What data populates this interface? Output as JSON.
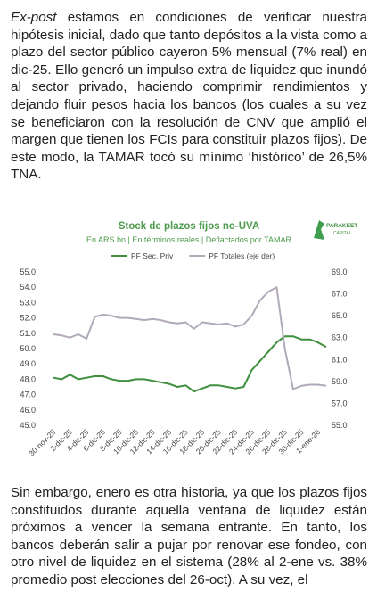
{
  "paragraphs": [
    {
      "emphasis": "Ex-post",
      "text": " estamos en condiciones de verificar nuestra hipótesis inicial, dado que tanto depósitos a la vista como a plazo del sector público cayeron 5% mensual (7% real) en dic-25. Ello generó un impulso extra de liquidez que inundó al sector privado, haciendo comprimir rendimientos y dejando fluir pesos hacia los bancos (los cuales a su vez se beneficiaron con la resolución de CNV que amplió el margen que tienen los FCIs para constituir plazos fijos). De este modo, la TAMAR tocó su mínimo ‘histórico’ de 26,5% TNA."
    },
    {
      "text": "Sin embargo, enero es otra historia, ya que los plazos fijos constituidos durante aquella ventana de liquidez están próximos a vencer la semana entrante. En tanto, los bancos deberán salir a pujar por renovar ese fondeo, con otro nivel de liquidez en el sistema (28% al 2-ene vs. 38% promedio post elecciones del 26-oct). A su vez, el"
    }
  ],
  "logo": {
    "name": "PARAKEET",
    "tagline": "CAPITAL"
  },
  "chart_data": {
    "type": "line",
    "title": "Stock de plazos fijos no-UVA",
    "subtitle": "En ARS bn | En términos reales | Deflactados por TAMAR",
    "categories": [
      "30-nov-25",
      null,
      "2-dic-25",
      null,
      "4-dic-25",
      null,
      "6-dic-25",
      null,
      "8-dic-25",
      null,
      "10-dic-25",
      null,
      "12-dic-25",
      null,
      "14-dic-25",
      null,
      "16-dic-25",
      null,
      "18-dic-25",
      null,
      "20-dic-25",
      null,
      "22-dic-25",
      null,
      "24-dic-25",
      null,
      "26-dic-25",
      null,
      "28-dic-25",
      null,
      "30-dic-25",
      null,
      "1-ene-26",
      null
    ],
    "series": [
      {
        "name": "PF Sec. Priv",
        "color": "#3f8f3f",
        "values": [
          48.1,
          48.0,
          48.3,
          48.0,
          48.1,
          48.2,
          48.2,
          48.0,
          47.9,
          47.9,
          48.0,
          48.0,
          47.9,
          47.8,
          47.7,
          47.5,
          47.6,
          47.2,
          47.4,
          47.6,
          47.6,
          47.5,
          47.4,
          47.5,
          48.6,
          49.2,
          49.8,
          50.4,
          50.8,
          50.8,
          50.6,
          50.6,
          50.4,
          50.1
        ]
      },
      {
        "name": "PF Totales (eje der)",
        "color": "#b3aab9",
        "axis": "y2",
        "values": [
          63.3,
          63.2,
          63.0,
          63.3,
          62.9,
          64.9,
          65.1,
          65.0,
          64.8,
          64.8,
          64.7,
          64.6,
          64.7,
          64.6,
          64.4,
          64.3,
          64.4,
          63.8,
          64.4,
          64.3,
          64.2,
          64.3,
          64.0,
          64.2,
          65.0,
          66.4,
          67.2,
          67.6,
          62.0,
          58.3,
          58.6,
          58.7,
          58.7,
          58.6
        ]
      }
    ],
    "ylim": [
      45,
      55
    ],
    "yticks": [
      {
        "value": 45,
        "label": "45.0"
      },
      {
        "value": 46,
        "label": "46.0"
      },
      {
        "value": 47,
        "label": "47.0"
      },
      {
        "value": 48,
        "label": "48.0"
      },
      {
        "value": 49,
        "label": "49.0"
      },
      {
        "value": 50,
        "label": "50.0"
      },
      {
        "value": 51,
        "label": "51.0"
      },
      {
        "value": 52,
        "label": "52.0"
      },
      {
        "value": 53,
        "label": "53.0"
      },
      {
        "value": 54,
        "label": "54.0"
      },
      {
        "value": 55,
        "label": "55.0"
      }
    ],
    "y2lim": [
      55,
      69
    ],
    "y2ticks": [
      {
        "value": 55,
        "label": "55.0"
      },
      {
        "value": 57,
        "label": "57.0"
      },
      {
        "value": 59,
        "label": "59.0"
      },
      {
        "value": 61,
        "label": "61.0"
      },
      {
        "value": 63,
        "label": "63.0"
      },
      {
        "value": 65,
        "label": "65.0"
      },
      {
        "value": 67,
        "label": "67.0"
      },
      {
        "value": 69,
        "label": "69.0"
      }
    ],
    "grid": false,
    "legend": "top"
  }
}
